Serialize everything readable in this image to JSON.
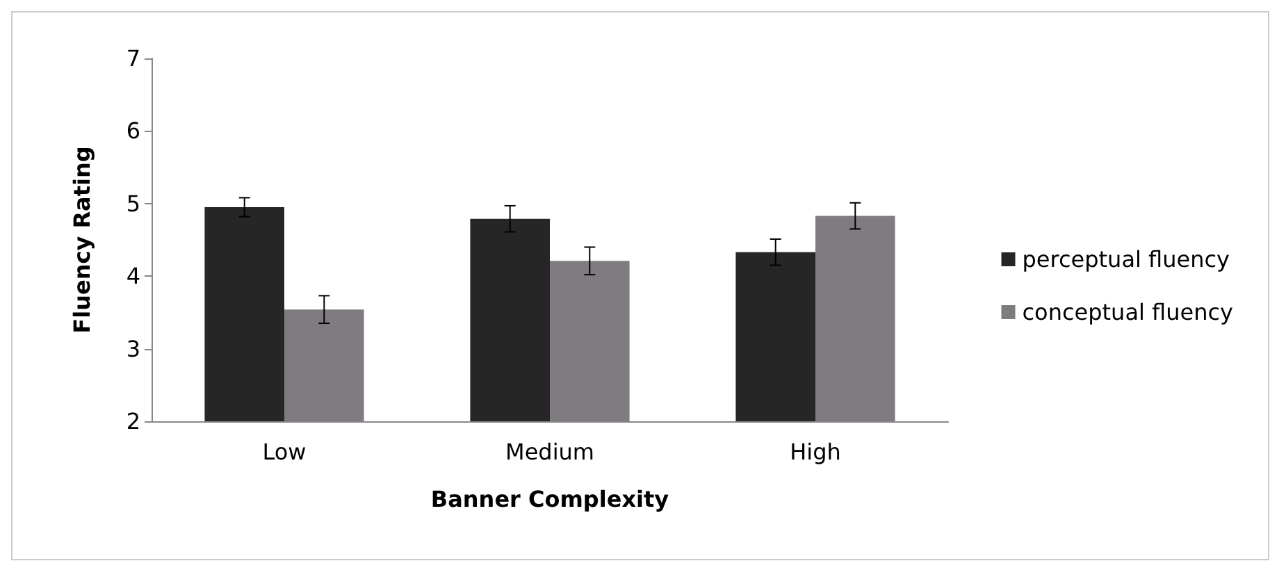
{
  "chart_data": {
    "type": "bar",
    "xlabel": "Banner Complexity",
    "ylabel": "Fluency Rating",
    "categories": [
      "Low",
      "Medium",
      "High"
    ],
    "series": [
      {
        "name": "perceptual fluency",
        "color": "#262626",
        "values": [
          4.95,
          4.79,
          4.33
        ],
        "errors": [
          0.13,
          0.18,
          0.18
        ]
      },
      {
        "name": "conceptual fluency",
        "color": "#807b80",
        "values": [
          3.54,
          4.21,
          4.83
        ],
        "errors": [
          0.19,
          0.19,
          0.18
        ]
      }
    ],
    "ylim": [
      2,
      7
    ],
    "yticks": [
      2,
      3,
      4,
      5,
      6,
      7
    ],
    "grid": false,
    "legend": "right"
  }
}
